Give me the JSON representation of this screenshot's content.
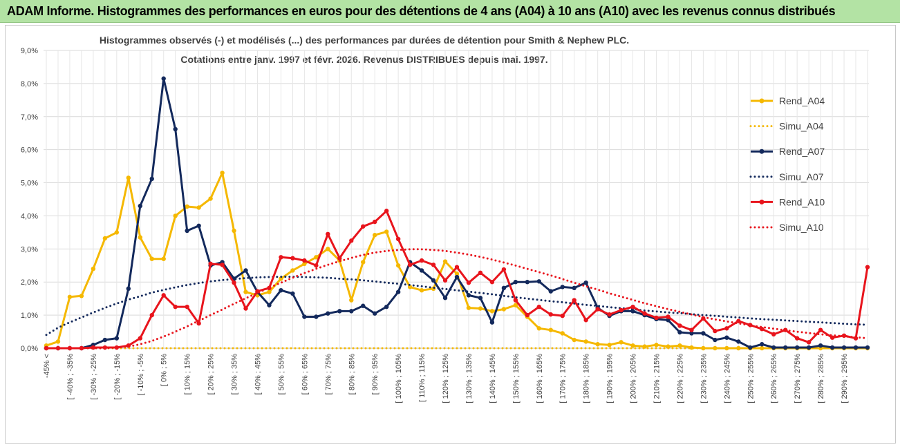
{
  "page_title": "ADAM Informe. Histogrammes des performances en euros pour des détentions de 4 ans (A04) à 10 ans (A10) avec les revenus connus distribués",
  "chart_data": {
    "type": "line",
    "title": "Histogrammes observés (-) et modélisés (...) des performances par durées de détention pour Smith & Nephew PLC.",
    "subtitle": "Cotations entre janv. 1997 et févr. 2026. Revenus DISTRIBUES depuis mai. 1997.",
    "xlabel": "",
    "ylabel": "",
    "ylim": [
      0,
      9
    ],
    "y_ticks": [
      "0,0%",
      "1,0%",
      "2,0%",
      "3,0%",
      "4,0%",
      "5,0%",
      "6,0%",
      "7,0%",
      "8,0%",
      "9,0%"
    ],
    "x_labels": [
      "-45% <",
      "[ -40% ; -35%",
      "[ -30% ; -25%",
      "[ -20% ; -15%",
      "[ -10% ; -5%",
      "[ 0% ; 5%",
      "[ 10% ; 15%",
      "[ 20% ; 25%",
      "[ 30% ; 35%",
      "[ 40% ; 45%",
      "[ 50% ; 55%",
      "[ 60% ; 65%",
      "[ 70% ; 75%",
      "[ 80% ; 85%",
      "[ 90% ; 95%",
      "[ 100% ; 105%",
      "[ 110% ; 115%",
      "[ 120% ; 125%",
      "[ 130% ; 135%",
      "[ 140% ; 145%",
      "[ 150% ; 155%",
      "[ 160% ; 165%",
      "[ 170% ; 175%",
      "[ 180% ; 185%",
      "[ 190% ; 195%",
      "[ 200% ; 205%",
      "[ 210% ; 215%",
      "[ 220% ; 225%",
      "[ 230% ; 235%",
      "[ 240% ; 245%",
      "[ 250% ; 255%",
      "[ 260% ; 265%",
      "[ 270% ; 275%",
      "[ 280% ; 285%",
      "[ 290% ; 295%"
    ],
    "n_bins": 71,
    "series": [
      {
        "name": "Rend_A04",
        "style": "solid",
        "color": "#f5b800",
        "values": [
          0.08,
          0.2,
          1.55,
          1.58,
          2.4,
          3.32,
          3.5,
          5.15,
          3.35,
          2.7,
          2.7,
          4.0,
          4.28,
          4.25,
          4.52,
          5.3,
          3.55,
          1.7,
          1.6,
          1.7,
          2.1,
          2.35,
          2.55,
          2.75,
          3.0,
          2.65,
          1.45,
          2.6,
          3.42,
          3.52,
          2.5,
          1.85,
          1.75,
          1.8,
          2.62,
          2.25,
          1.22,
          1.2,
          1.12,
          1.18,
          1.3,
          0.95,
          0.6,
          0.55,
          0.45,
          0.25,
          0.2,
          0.12,
          0.1,
          0.18,
          0.08,
          0.05,
          0.1,
          0.05,
          0.08,
          0.02,
          0,
          0,
          0,
          0,
          0,
          0,
          0,
          0,
          0,
          0,
          0,
          0,
          0,
          0,
          0
        ]
      },
      {
        "name": "Simu_A04",
        "style": "dotted",
        "color": "#f5b800",
        "values": [
          0,
          0,
          0,
          0,
          0,
          0,
          0,
          0,
          0,
          0,
          0,
          0,
          0,
          0,
          0,
          0,
          0,
          0,
          0,
          0,
          0,
          0,
          0,
          0,
          0,
          0,
          0,
          0,
          0,
          0,
          0,
          0,
          0,
          0,
          0,
          0,
          0,
          0,
          0,
          0,
          0,
          0,
          0,
          0,
          0,
          0,
          0,
          0,
          0,
          0,
          0,
          0,
          0,
          0,
          0,
          0,
          0,
          0,
          0,
          0,
          0,
          0,
          0,
          0,
          0,
          0,
          0,
          0,
          0,
          0,
          0
        ]
      },
      {
        "name": "Rend_A07",
        "style": "solid",
        "color": "#13295c",
        "values": [
          0,
          0,
          0,
          0,
          0.1,
          0.25,
          0.3,
          1.8,
          4.3,
          5.12,
          8.15,
          6.62,
          3.55,
          3.7,
          2.5,
          2.6,
          2.1,
          2.35,
          1.7,
          1.3,
          1.75,
          1.65,
          0.95,
          0.95,
          1.05,
          1.12,
          1.12,
          1.28,
          1.05,
          1.25,
          1.7,
          2.6,
          2.35,
          2.05,
          1.52,
          2.15,
          1.6,
          1.52,
          0.78,
          1.82,
          2.0,
          2.0,
          2.02,
          1.72,
          1.85,
          1.82,
          1.98,
          1.22,
          0.98,
          1.12,
          1.12,
          1.0,
          0.88,
          0.85,
          0.48,
          0.45,
          0.45,
          0.25,
          0.32,
          0.2,
          0.02,
          0.12,
          0.02,
          0.02,
          0.02,
          0.02,
          0.08,
          0.02,
          0.02,
          0.02,
          0.02
        ]
      },
      {
        "name": "Simu_A07",
        "style": "dotted",
        "color": "#13295c",
        "values": [
          0.4,
          0.62,
          0.78,
          0.93,
          1.08,
          1.22,
          1.35,
          1.47,
          1.57,
          1.68,
          1.76,
          1.84,
          1.91,
          1.97,
          2.02,
          2.06,
          2.09,
          2.12,
          2.14,
          2.15,
          2.16,
          2.16,
          2.15,
          2.14,
          2.13,
          2.1,
          2.08,
          2.05,
          2.02,
          1.98,
          1.95,
          1.91,
          1.87,
          1.83,
          1.79,
          1.75,
          1.71,
          1.67,
          1.63,
          1.58,
          1.54,
          1.5,
          1.46,
          1.42,
          1.39,
          1.35,
          1.31,
          1.28,
          1.24,
          1.21,
          1.18,
          1.14,
          1.11,
          1.08,
          1.06,
          1.03,
          1.0,
          0.98,
          0.95,
          0.93,
          0.9,
          0.88,
          0.86,
          0.84,
          0.82,
          0.8,
          0.78,
          0.76,
          0.74,
          0.72,
          0.71
        ]
      },
      {
        "name": "Rend_A10",
        "style": "solid",
        "color": "#e8141c",
        "values": [
          0,
          0,
          0,
          0,
          0.02,
          0.02,
          0.02,
          0.08,
          0.3,
          1.0,
          1.6,
          1.25,
          1.25,
          0.75,
          2.55,
          2.52,
          1.98,
          1.2,
          1.72,
          1.82,
          2.75,
          2.72,
          2.65,
          2.5,
          3.45,
          2.72,
          3.25,
          3.68,
          3.82,
          4.15,
          3.3,
          2.52,
          2.65,
          2.52,
          2.05,
          2.45,
          1.98,
          2.28,
          2.0,
          2.38,
          1.45,
          1.0,
          1.25,
          1.02,
          0.98,
          1.45,
          0.85,
          1.18,
          1.02,
          1.15,
          1.25,
          1.05,
          0.92,
          0.95,
          0.68,
          0.55,
          0.9,
          0.52,
          0.6,
          0.82,
          0.7,
          0.58,
          0.42,
          0.55,
          0.3,
          0.18,
          0.55,
          0.32,
          0.38,
          0.3,
          2.45
        ]
      },
      {
        "name": "Simu_A10",
        "style": "dotted",
        "color": "#e8141c",
        "values": [
          0,
          0,
          0,
          0,
          0,
          0,
          0.02,
          0.05,
          0.12,
          0.22,
          0.35,
          0.5,
          0.66,
          0.83,
          1.0,
          1.17,
          1.34,
          1.51,
          1.67,
          1.83,
          1.98,
          2.13,
          2.27,
          2.4,
          2.52,
          2.63,
          2.73,
          2.82,
          2.89,
          2.94,
          2.97,
          2.99,
          2.99,
          2.97,
          2.94,
          2.89,
          2.83,
          2.76,
          2.68,
          2.59,
          2.5,
          2.4,
          2.3,
          2.2,
          2.09,
          1.98,
          1.87,
          1.77,
          1.66,
          1.56,
          1.46,
          1.36,
          1.27,
          1.18,
          1.1,
          1.02,
          0.94,
          0.87,
          0.81,
          0.75,
          0.69,
          0.64,
          0.59,
          0.54,
          0.5,
          0.46,
          0.42,
          0.39,
          0.36,
          0.33,
          0.3
        ]
      }
    ],
    "legend": "right"
  }
}
